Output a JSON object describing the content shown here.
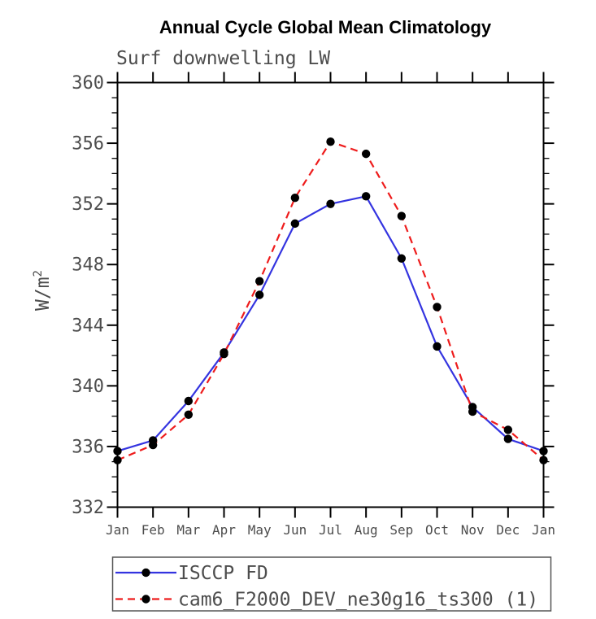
{
  "chart_data": {
    "type": "line",
    "title": "Annual Cycle Global Mean Climatology",
    "subtitle": "Surf downwelling LW",
    "ylabel": "W/m2",
    "ylabel_main": "W/m",
    "ylabel_sup": "2",
    "xlabel": "",
    "categories": [
      "Jan",
      "Feb",
      "Mar",
      "Apr",
      "May",
      "Jun",
      "Jul",
      "Aug",
      "Sep",
      "Oct",
      "Nov",
      "Dec",
      "Jan"
    ],
    "series": [
      {
        "name": "ISCCP FD",
        "color": "#3434e0",
        "style": "solid",
        "marker": "circle",
        "values": [
          335.7,
          336.4,
          339.0,
          342.2,
          346.0,
          350.7,
          352.0,
          352.5,
          348.4,
          342.6,
          338.6,
          336.5,
          335.7
        ]
      },
      {
        "name": "cam6_F2000_DEV_ne30g16_ts300 (1)",
        "color": "#ee1c1c",
        "style": "dashed",
        "marker": "circle",
        "values": [
          335.1,
          336.1,
          338.1,
          342.1,
          346.9,
          352.4,
          356.1,
          355.3,
          351.2,
          345.2,
          338.3,
          337.1,
          335.1
        ]
      }
    ],
    "ylim": [
      332,
      360
    ],
    "yticks": [
      "332",
      "336",
      "340",
      "344",
      "348",
      "352",
      "356",
      "360"
    ],
    "ytick_major": 4,
    "ytick_minor": 1,
    "grid": false,
    "legend_position": "bottom-left-box",
    "style": {
      "axis_color": "#000000",
      "marker_color": "#000000",
      "text_color": "#4d4d4d",
      "background": "#ffffff"
    }
  }
}
